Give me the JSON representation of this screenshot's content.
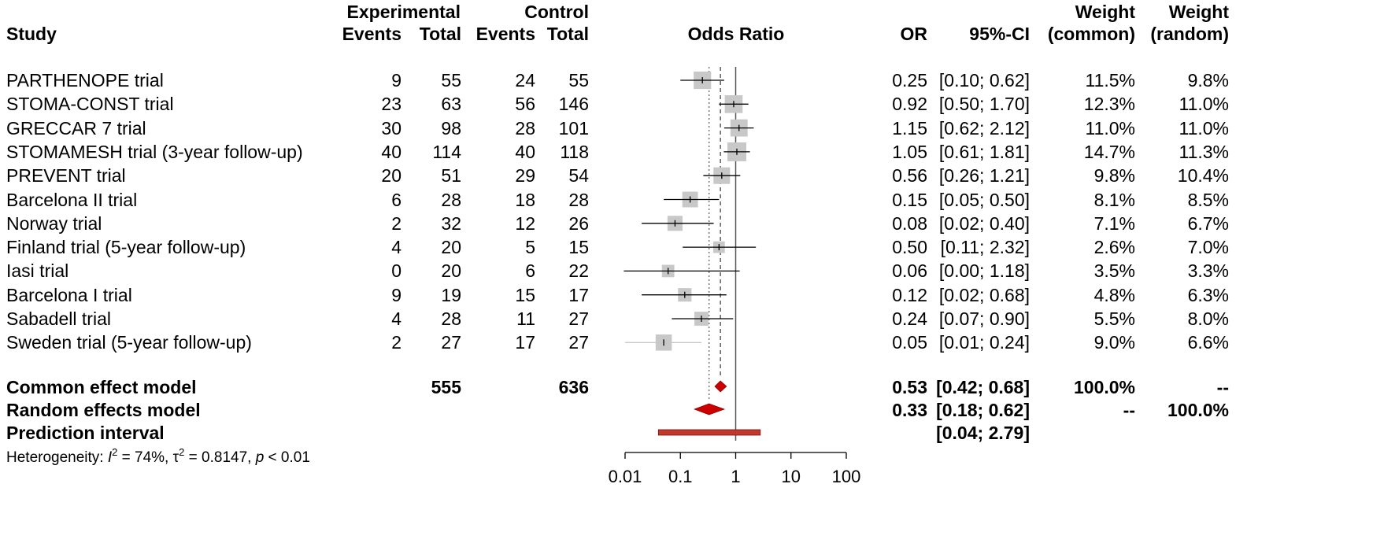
{
  "headers": {
    "study": "Study",
    "experimental": "Experimental",
    "control": "Control",
    "events_exp": "Events",
    "total_exp": "Total",
    "events_ctl": "Events",
    "total_ctl": "Total",
    "odds_ratio": "Odds Ratio",
    "or": "OR",
    "ci": "95%-CI",
    "weight1": "Weight",
    "weight_common": "(common)",
    "weight2": "Weight",
    "weight_random": "(random)"
  },
  "studies": [
    {
      "name": "PARTHENOPE trial",
      "e_ev": "9",
      "e_tot": "55",
      "c_ev": "24",
      "c_tot": "55",
      "or": "0.25",
      "ci": "[0.10; 0.62]",
      "w_common": "11.5%",
      "w_random": "9.8%"
    },
    {
      "name": "STOMA-CONST trial",
      "e_ev": "23",
      "e_tot": "63",
      "c_ev": "56",
      "c_tot": "146",
      "or": "0.92",
      "ci": "[0.50; 1.70]",
      "w_common": "12.3%",
      "w_random": "11.0%"
    },
    {
      "name": "GRECCAR 7 trial",
      "e_ev": "30",
      "e_tot": "98",
      "c_ev": "28",
      "c_tot": "101",
      "or": "1.15",
      "ci": "[0.62; 2.12]",
      "w_common": "11.0%",
      "w_random": "11.0%"
    },
    {
      "name": "STOMAMESH trial  (3-year follow-up)",
      "e_ev": "40",
      "e_tot": "114",
      "c_ev": "40",
      "c_tot": "118",
      "or": "1.05",
      "ci": "[0.61; 1.81]",
      "w_common": "14.7%",
      "w_random": "11.3%"
    },
    {
      "name": "PREVENT trial",
      "e_ev": "20",
      "e_tot": "51",
      "c_ev": "29",
      "c_tot": "54",
      "or": "0.56",
      "ci": "[0.26; 1.21]",
      "w_common": "9.8%",
      "w_random": "10.4%"
    },
    {
      "name": "Barcelona II trial",
      "e_ev": "6",
      "e_tot": "28",
      "c_ev": "18",
      "c_tot": "28",
      "or": "0.15",
      "ci": "[0.05; 0.50]",
      "w_common": "8.1%",
      "w_random": "8.5%"
    },
    {
      "name": "Norway trial",
      "e_ev": "2",
      "e_tot": "32",
      "c_ev": "12",
      "c_tot": "26",
      "or": "0.08",
      "ci": "[0.02; 0.40]",
      "w_common": "7.1%",
      "w_random": "6.7%"
    },
    {
      "name": "Finland trial  (5-year follow-up)",
      "e_ev": "4",
      "e_tot": "20",
      "c_ev": "5",
      "c_tot": "15",
      "or": "0.50",
      "ci": "[0.11; 2.32]",
      "w_common": "2.6%",
      "w_random": "7.0%"
    },
    {
      "name": "Iasi trial",
      "e_ev": "0",
      "e_tot": "20",
      "c_ev": "6",
      "c_tot": "22",
      "or": "0.06",
      "ci": "[0.00; 1.18]",
      "w_common": "3.5%",
      "w_random": "3.3%"
    },
    {
      "name": "Barcelona I trial",
      "e_ev": "9",
      "e_tot": "19",
      "c_ev": "15",
      "c_tot": "17",
      "or": "0.12",
      "ci": "[0.02; 0.68]",
      "w_common": "4.8%",
      "w_random": "6.3%"
    },
    {
      "name": "Sabadell trial",
      "e_ev": "4",
      "e_tot": "28",
      "c_ev": "11",
      "c_tot": "27",
      "or": "0.24",
      "ci": "[0.07; 0.90]",
      "w_common": "5.5%",
      "w_random": "8.0%"
    },
    {
      "name": "Sweden trial  (5-year follow-up)",
      "e_ev": "2",
      "e_tot": "27",
      "c_ev": "17",
      "c_tot": "27",
      "or": "0.05",
      "ci": "[0.01; 0.24]",
      "w_common": "9.0%",
      "w_random": "6.6%"
    }
  ],
  "summary": {
    "common": {
      "name": "Common effect model",
      "e_tot": "555",
      "c_tot": "636",
      "or": "0.53",
      "ci": "[0.42; 0.68]",
      "w_common": "100.0%",
      "w_random": "--"
    },
    "random": {
      "name": "Random effects model",
      "or": "0.33",
      "ci": "[0.18; 0.62]",
      "w_common": "--",
      "w_random": "100.0%"
    },
    "prediction": {
      "name": "Prediction interval",
      "ci": "[0.04; 2.79]"
    }
  },
  "heterogeneity": {
    "prefix": "Heterogeneity: ",
    "i2_sym": "I",
    "i2_val": " = 74%, ",
    "tau_sym": "τ",
    "tau_val": " = 0.8147, ",
    "p_sym": "p",
    "p_val": " < 0.01",
    "sup2": "2"
  },
  "chart_data": {
    "type": "forest",
    "x_scale": "log",
    "xlim": [
      0.01,
      100
    ],
    "ticks": [
      "0.01",
      "0.1",
      "1",
      "10",
      "100"
    ],
    "tick_values": [
      0.01,
      0.1,
      1,
      10,
      100
    ],
    "reference_line": 1,
    "common_line": 0.53,
    "random_line": 0.33,
    "studies": [
      {
        "or": 0.25,
        "lo": 0.1,
        "hi": 0.62,
        "w": 11.5
      },
      {
        "or": 0.92,
        "lo": 0.5,
        "hi": 1.7,
        "w": 12.3
      },
      {
        "or": 1.15,
        "lo": 0.62,
        "hi": 2.12,
        "w": 11.0
      },
      {
        "or": 1.05,
        "lo": 0.61,
        "hi": 1.81,
        "w": 14.7
      },
      {
        "or": 0.56,
        "lo": 0.26,
        "hi": 1.21,
        "w": 9.8
      },
      {
        "or": 0.15,
        "lo": 0.05,
        "hi": 0.5,
        "w": 8.1
      },
      {
        "or": 0.08,
        "lo": 0.02,
        "hi": 0.4,
        "w": 7.1
      },
      {
        "or": 0.5,
        "lo": 0.11,
        "hi": 2.32,
        "w": 2.6
      },
      {
        "or": 0.06,
        "lo": 0.003,
        "hi": 1.18,
        "w": 3.5
      },
      {
        "or": 0.12,
        "lo": 0.02,
        "hi": 0.68,
        "w": 4.8
      },
      {
        "or": 0.24,
        "lo": 0.07,
        "hi": 0.9,
        "w": 5.5
      },
      {
        "or": 0.05,
        "lo": 0.01,
        "hi": 0.24,
        "w": 9.0
      }
    ],
    "common": {
      "or": 0.53,
      "lo": 0.42,
      "hi": 0.68
    },
    "random": {
      "or": 0.33,
      "lo": 0.18,
      "hi": 0.62
    },
    "prediction": {
      "lo": 0.04,
      "hi": 2.79
    },
    "colors": {
      "box": "#c8c8c8",
      "diamond": "#cc0000",
      "prediction": "#c0392b",
      "ci_line": "#000000",
      "ci_light": "#c8c8c8"
    }
  }
}
